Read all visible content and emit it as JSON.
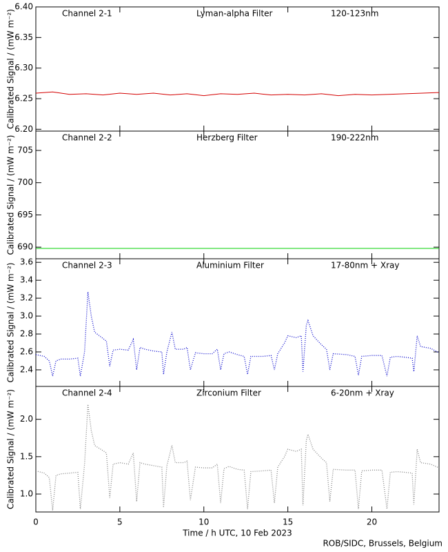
{
  "chart_data": [
    {
      "type": "line",
      "title": "Channel 2-1",
      "annotations": [
        "Lyman-alpha Filter",
        "120-123nm"
      ],
      "ylabel": "Calibrated Signal / (mW m⁻²)",
      "x": [
        0,
        1,
        2,
        3,
        4,
        5,
        6,
        7,
        8,
        9,
        10,
        11,
        12,
        13,
        14,
        15,
        16,
        17,
        18,
        19,
        20,
        21,
        22,
        23,
        24
      ],
      "series": [
        {
          "color": "#d40000",
          "line_style": "solid",
          "values": [
            6.259,
            6.261,
            6.257,
            6.258,
            6.256,
            6.259,
            6.257,
            6.259,
            6.256,
            6.258,
            6.255,
            6.258,
            6.257,
            6.259,
            6.256,
            6.257,
            6.256,
            6.258,
            6.255,
            6.257,
            6.256,
            6.257,
            6.258,
            6.259,
            6.26
          ]
        }
      ],
      "xlim": [
        0,
        24
      ],
      "ylim": [
        6.197,
        6.4
      ],
      "yticks": [
        {
          "value": 6.2,
          "label": "6.20"
        },
        6.25,
        {
          "value": 6.3,
          "label": "6.30"
        },
        6.35,
        {
          "value": 6.4,
          "label": "6.40"
        }
      ]
    },
    {
      "type": "line",
      "title": "Channel 2-2",
      "annotations": [
        "Herzberg Filter",
        "190-222nm"
      ],
      "ylabel": "Calibrated Signal / (mW m⁻²)",
      "x": [
        0,
        24
      ],
      "series": [
        {
          "color": "#00d000",
          "line_style": "solid",
          "values": [
            689.8,
            689.8
          ]
        }
      ],
      "xlim": [
        0,
        24
      ],
      "ylim": [
        688.2,
        708
      ],
      "yticks": [
        690,
        695,
        700,
        705
      ]
    },
    {
      "type": "line",
      "title": "Channel 2-3",
      "annotations": [
        "Aluminium Filter",
        "17-80nm + Xray"
      ],
      "ylabel": "Calibrated Signal / (mW m⁻²)",
      "x": [
        0,
        0.5,
        0.8,
        1.0,
        1.2,
        1.5,
        2.0,
        2.5,
        2.65,
        2.9,
        3.1,
        3.3,
        3.5,
        4.0,
        4.2,
        4.4,
        4.6,
        5.0,
        5.5,
        5.8,
        6.0,
        6.2,
        6.5,
        7.0,
        7.5,
        7.6,
        7.8,
        8.1,
        8.3,
        8.8,
        9.0,
        9.2,
        9.5,
        10,
        10.5,
        10.8,
        11,
        11.2,
        11.5,
        12,
        12.4,
        12.6,
        12.8,
        13.5,
        14,
        14.2,
        14.4,
        14.8,
        15,
        15.5,
        15.8,
        15.9,
        16.1,
        16.2,
        16.5,
        17,
        17.3,
        17.5,
        17.7,
        18.5,
        19,
        19.2,
        19.4,
        20,
        20.6,
        20.9,
        21.1,
        21.5,
        22,
        22.4,
        22.5,
        22.7,
        22.9,
        23.5,
        24
      ],
      "series": [
        {
          "color": "#0000cc",
          "line_style": "dotted",
          "values": [
            2.57,
            2.55,
            2.5,
            2.33,
            2.5,
            2.52,
            2.52,
            2.53,
            2.33,
            2.6,
            3.27,
            3.0,
            2.82,
            2.75,
            2.72,
            2.44,
            2.62,
            2.63,
            2.62,
            2.74,
            2.4,
            2.65,
            2.63,
            2.61,
            2.6,
            2.35,
            2.6,
            2.82,
            2.63,
            2.63,
            2.65,
            2.4,
            2.59,
            2.58,
            2.58,
            2.63,
            2.4,
            2.58,
            2.6,
            2.57,
            2.55,
            2.35,
            2.55,
            2.55,
            2.56,
            2.4,
            2.58,
            2.7,
            2.78,
            2.76,
            2.78,
            2.38,
            2.9,
            2.95,
            2.78,
            2.68,
            2.63,
            2.4,
            2.58,
            2.57,
            2.55,
            2.34,
            2.55,
            2.56,
            2.56,
            2.33,
            2.54,
            2.55,
            2.54,
            2.53,
            2.38,
            2.78,
            2.66,
            2.64,
            2.59
          ]
        }
      ],
      "xlim": [
        0,
        24
      ],
      "ylim": [
        2.215,
        3.64
      ],
      "yticks": [
        2.4,
        2.6,
        2.8,
        {
          "value": 3,
          "label": "3.0"
        },
        3.2,
        3.4,
        3.6
      ]
    },
    {
      "type": "line",
      "title": "Channel 2-4",
      "annotations": [
        "Zirconium Filter",
        "6-20nm + Xray"
      ],
      "ylabel": "Calibrated Signal / (mW m⁻²)",
      "xlabel": "Time / h UTC, 10 Feb 2023",
      "source": "ROB/SIDC, Brussels, Belgium",
      "x": [
        0,
        0.5,
        0.8,
        1.0,
        1.2,
        1.5,
        2.0,
        2.5,
        2.65,
        2.9,
        3.1,
        3.3,
        3.5,
        4.0,
        4.2,
        4.4,
        4.6,
        5.0,
        5.5,
        5.8,
        6.0,
        6.2,
        6.5,
        7.0,
        7.5,
        7.6,
        7.8,
        8.1,
        8.3,
        8.8,
        9.0,
        9.2,
        9.5,
        10,
        10.5,
        10.8,
        11,
        11.2,
        11.5,
        12,
        12.4,
        12.6,
        12.8,
        13.5,
        14,
        14.2,
        14.4,
        14.8,
        15,
        15.5,
        15.8,
        15.9,
        16.1,
        16.2,
        16.5,
        17,
        17.3,
        17.5,
        17.7,
        18.5,
        19,
        19.2,
        19.4,
        20,
        20.6,
        20.9,
        21.1,
        21.5,
        22,
        22.4,
        22.5,
        22.7,
        22.9,
        23.5,
        24
      ],
      "series": [
        {
          "color": "#808080",
          "line_style": "dotted",
          "values": [
            1.31,
            1.28,
            1.22,
            0.78,
            1.25,
            1.27,
            1.28,
            1.29,
            0.8,
            1.4,
            2.2,
            1.85,
            1.65,
            1.58,
            1.55,
            0.95,
            1.4,
            1.42,
            1.4,
            1.55,
            0.9,
            1.42,
            1.4,
            1.38,
            1.36,
            0.82,
            1.38,
            1.65,
            1.42,
            1.42,
            1.44,
            0.92,
            1.36,
            1.35,
            1.35,
            1.4,
            0.88,
            1.34,
            1.37,
            1.33,
            1.32,
            0.8,
            1.3,
            1.31,
            1.32,
            0.88,
            1.36,
            1.5,
            1.6,
            1.57,
            1.6,
            0.85,
            1.72,
            1.8,
            1.6,
            1.48,
            1.42,
            0.9,
            1.33,
            1.32,
            1.32,
            0.8,
            1.31,
            1.32,
            1.32,
            0.8,
            1.29,
            1.3,
            1.29,
            1.28,
            0.86,
            1.6,
            1.42,
            1.4,
            1.35
          ]
        }
      ],
      "xlim": [
        0,
        24
      ],
      "ylim": [
        0.76,
        2.44
      ],
      "xticks": [
        0,
        5,
        10,
        15,
        20
      ],
      "yticks": [
        {
          "value": 1,
          "label": "1.0"
        },
        1.5,
        {
          "value": 2,
          "label": "2.0"
        }
      ]
    }
  ]
}
